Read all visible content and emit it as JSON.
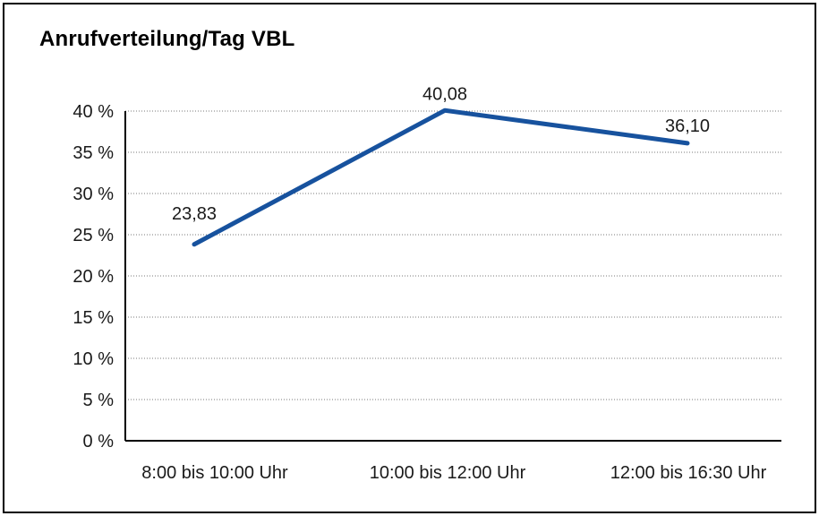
{
  "chart": {
    "title": "Anrufverteilung/Tag VBL"
  },
  "chart_data": {
    "type": "line",
    "title": "Anrufverteilung/Tag VBL",
    "categories": [
      "8:00 bis 10:00 Uhr",
      "10:00 bis 12:00 Uhr",
      "12:00 bis 16:30 Uhr"
    ],
    "series": [
      {
        "values": [
          23.83,
          40.08,
          36.1
        ],
        "value_labels": [
          "23,83",
          "40,08",
          "36,10"
        ],
        "color": "#17529E"
      }
    ],
    "ylim": [
      0,
      40
    ],
    "ytick_step": 5,
    "yticks": [
      "0 %",
      "5 %",
      "10 %",
      "15 %",
      "20 %",
      "25 %",
      "30 %",
      "35 %",
      "40 %"
    ],
    "xlabel": "",
    "ylabel": "",
    "grid": "horizontal-dotted",
    "legend": "none",
    "markers": "none",
    "colors": {
      "line": "#17529E",
      "axis": "#000000",
      "gridline": "#7a7a7a",
      "text": "#1a1a1a",
      "background": "#ffffff",
      "frame_border": "#000000"
    }
  }
}
